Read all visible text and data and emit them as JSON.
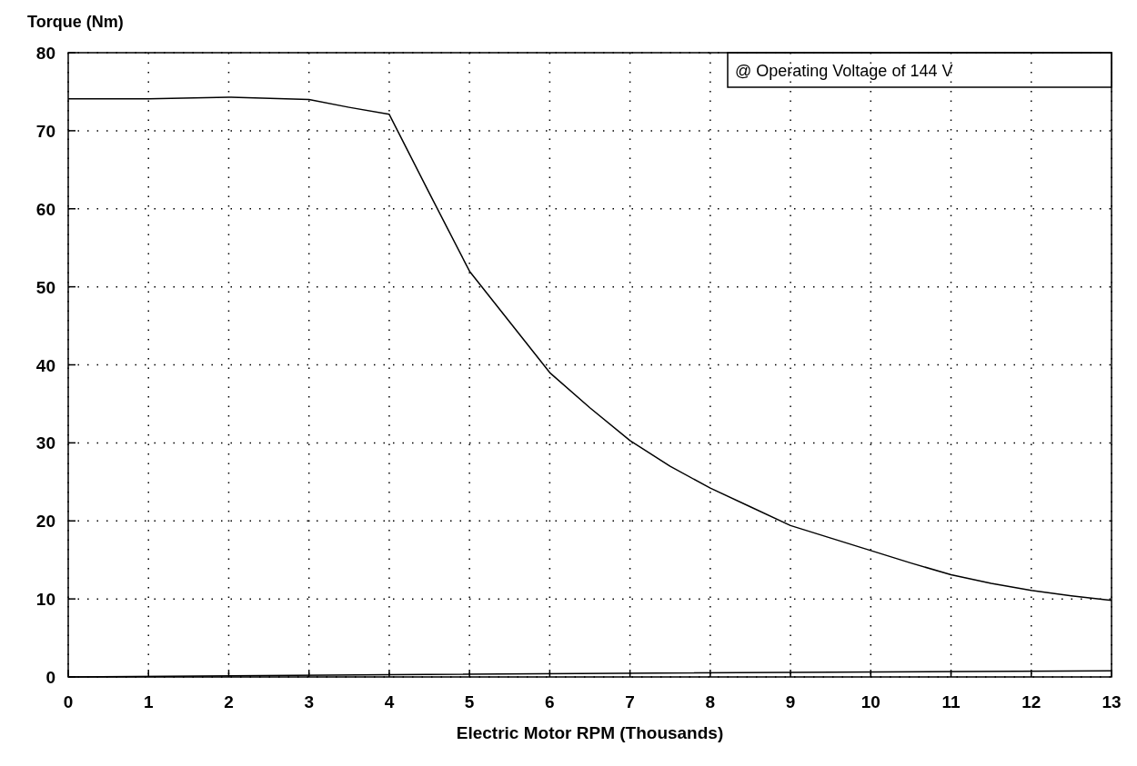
{
  "chart_data": {
    "type": "line",
    "ylabel": "Torque (Nm)",
    "xlabel": "Electric Motor RPM (Thousands)",
    "annotations": [
      "@ Operating Voltage of 144 V"
    ],
    "series": [
      {
        "color": "#000000",
        "x": [
          0,
          1,
          2,
          3,
          3.5,
          4,
          4.5,
          5,
          5.5,
          6,
          6.5,
          7,
          7.5,
          8,
          8.5,
          9,
          9.5,
          10,
          10.5,
          11,
          11.5,
          12,
          12.5,
          13
        ],
        "values": [
          74.1,
          74.1,
          74.3,
          74,
          73,
          72.1,
          62,
          52,
          45.5,
          39,
          34.5,
          30.3,
          27,
          24.2,
          21.8,
          19.4,
          17.8,
          16.2,
          14.6,
          13.1,
          12,
          11.1,
          10.4,
          9.8
        ]
      },
      {
        "color": "#000000",
        "x": [
          0,
          4,
          13
        ],
        "values": [
          0,
          0.3,
          0.8
        ]
      }
    ],
    "xlim": [
      0,
      13
    ],
    "xticks": [
      0,
      1,
      2,
      3,
      4,
      5,
      6,
      7,
      8,
      9,
      10,
      11,
      12,
      13
    ],
    "ylim": [
      0,
      80
    ],
    "yticks": [
      0,
      10,
      20,
      30,
      40,
      50,
      60,
      70,
      80
    ],
    "grid": true,
    "marker": "none",
    "line_style": "solid"
  }
}
